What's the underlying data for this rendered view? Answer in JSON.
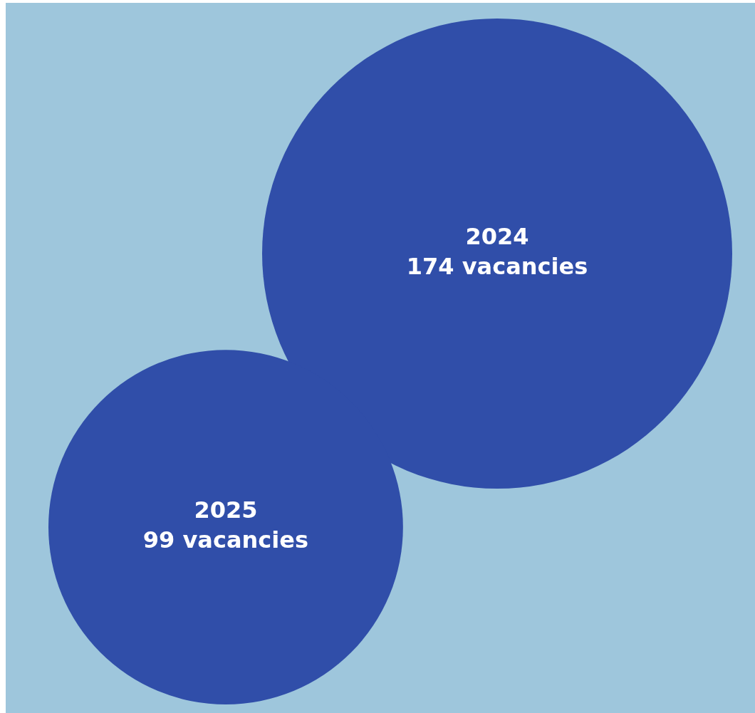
{
  "chart_data": {
    "type": "other",
    "categories": [
      "2024",
      "2025"
    ],
    "values": [
      174,
      99
    ],
    "value_labels": [
      "174 vacancies",
      "99 vacancies"
    ],
    "color": "#304ea9"
  }
}
